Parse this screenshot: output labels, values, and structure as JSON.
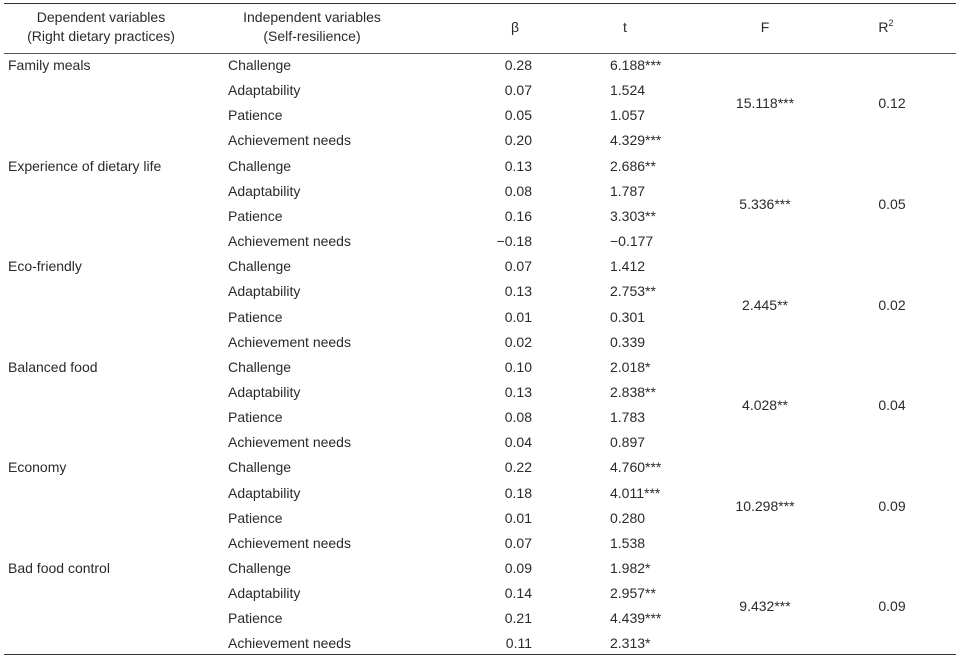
{
  "headers": {
    "dependent": [
      "Dependent variables",
      "(Right dietary practices)"
    ],
    "independent": [
      "Independent variables",
      "(Self-resilience)"
    ],
    "beta": "β",
    "t": "t",
    "f": "F",
    "r2_base": "R",
    "r2_sup": "2"
  },
  "groups": [
    {
      "dependent": "Family meals",
      "F": "15.118***",
      "R2": "0.12",
      "rows": [
        {
          "independent": "Challenge",
          "beta": "0.28",
          "t": "6.188***"
        },
        {
          "independent": "Adaptability",
          "beta": "0.07",
          "t": "1.524"
        },
        {
          "independent": "Patience",
          "beta": "0.05",
          "t": "1.057"
        },
        {
          "independent": "Achievement needs",
          "beta": "0.20",
          "t": "4.329***"
        }
      ]
    },
    {
      "dependent": "Experience of dietary life",
      "F": "5.336***",
      "R2": "0.05",
      "rows": [
        {
          "independent": "Challenge",
          "beta": "0.13",
          "t": "2.686**"
        },
        {
          "independent": "Adaptability",
          "beta": "0.08",
          "t": "1.787"
        },
        {
          "independent": "Patience",
          "beta": "0.16",
          "t": "3.303**"
        },
        {
          "independent": "Achievement needs",
          "beta": "−0.18",
          "t": "−0.177"
        }
      ]
    },
    {
      "dependent": "Eco-friendly",
      "F": "2.445**",
      "R2": "0.02",
      "rows": [
        {
          "independent": "Challenge",
          "beta": "0.07",
          "t": "1.412"
        },
        {
          "independent": "Adaptability",
          "beta": "0.13",
          "t": "2.753**"
        },
        {
          "independent": "Patience",
          "beta": "0.01",
          "t": "0.301"
        },
        {
          "independent": "Achievement needs",
          "beta": "0.02",
          "t": "0.339"
        }
      ]
    },
    {
      "dependent": "Balanced food",
      "F": "4.028**",
      "R2": "0.04",
      "rows": [
        {
          "independent": "Challenge",
          "beta": "0.10",
          "t": "2.018*"
        },
        {
          "independent": "Adaptability",
          "beta": "0.13",
          "t": "2.838**"
        },
        {
          "independent": "Patience",
          "beta": "0.08",
          "t": "1.783"
        },
        {
          "independent": "Achievement needs",
          "beta": "0.04",
          "t": "0.897"
        }
      ]
    },
    {
      "dependent": "Economy",
      "F": "10.298***",
      "R2": "0.09",
      "rows": [
        {
          "independent": "Challenge",
          "beta": "0.22",
          "t": "4.760***"
        },
        {
          "independent": "Adaptability",
          "beta": "0.18",
          "t": "4.011***"
        },
        {
          "independent": "Patience",
          "beta": "0.01",
          "t": "0.280"
        },
        {
          "independent": "Achievement needs",
          "beta": "0.07",
          "t": "1.538"
        }
      ]
    },
    {
      "dependent": "Bad food control",
      "F": "9.432***",
      "R2": "0.09",
      "rows": [
        {
          "independent": "Challenge",
          "beta": "0.09",
          "t": "1.982*"
        },
        {
          "independent": "Adaptability",
          "beta": "0.14",
          "t": "2.957**"
        },
        {
          "independent": "Patience",
          "beta": "0.21",
          "t": "4.439***"
        },
        {
          "independent": "Achievement needs",
          "beta": "0.11",
          "t": "2.313*"
        }
      ]
    }
  ]
}
